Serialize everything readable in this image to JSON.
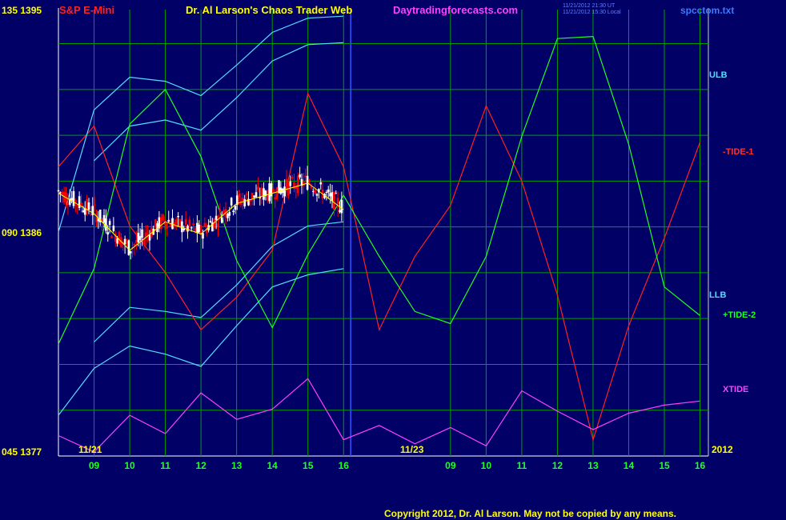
{
  "header": {
    "instrument": "S&P E-Mini",
    "title": "Dr. Al Larson's Chaos Trader Web",
    "site": "Daytradingforecasts.com",
    "timestamp_ut": "11/21/2012 21:30 UT",
    "timestamp_local": "11/21/2012 15:30 Local",
    "filename": "spcctom.txt"
  },
  "left_axis": [
    {
      "label": "135  1395",
      "price": 1395
    },
    {
      "label": "090  1386",
      "price": 1386
    },
    {
      "label": "045  1377",
      "price": 1377
    }
  ],
  "right_labels": {
    "ulb": "ULB",
    "tide1": "-TIDE-1",
    "llb": "LLB",
    "tide2": "+TIDE-2",
    "xtide": "XTIDE",
    "year": "2012"
  },
  "date_labels": [
    "11/21",
    "11/23"
  ],
  "footer": {
    "copyright": "Copyright 2012, Dr. Al Larson. May not be copied by any means."
  },
  "colors": {
    "background": "#000066",
    "grid": "#00a000",
    "ulb": "#55ddff",
    "tide1": "#ff2020",
    "tide2": "#20ff20",
    "xtide": "#ff40ff",
    "price_up": "#ffffff",
    "price_down": "#ff0000",
    "yellow": "#ffff00",
    "vline": "#3355ff"
  },
  "chart_data": {
    "type": "line",
    "title": "Dr. Al Larson's Chaos Trader Web",
    "y_price_range": [
      1377,
      1399
    ],
    "x_hour_ticks": [
      "09",
      "10",
      "11",
      "12",
      "13",
      "14",
      "15",
      "16",
      "09",
      "10",
      "11",
      "12",
      "13",
      "14",
      "15",
      "16"
    ],
    "series": [
      {
        "name": "ULB",
        "x": [
          9,
          10,
          11,
          12,
          13,
          14,
          15,
          16
        ],
        "values": [
          1391.5,
          1393.2,
          1393.5,
          1393.0,
          1394.6,
          1396.4,
          1397.2,
          1397.3
        ]
      },
      {
        "name": "LLB",
        "x": [
          9,
          10,
          11,
          12,
          13,
          14,
          15,
          16
        ],
        "values": [
          1382.6,
          1384.3,
          1384.1,
          1383.8,
          1385.4,
          1387.3,
          1388.3,
          1388.5
        ]
      },
      {
        "name": "-TIDE-1",
        "x": [
          8,
          9,
          10,
          11,
          12,
          13,
          14,
          15,
          16,
          17,
          18,
          19,
          20,
          21,
          22,
          23,
          24,
          25,
          26
        ],
        "values": [
          1391.2,
          1393.2,
          1388.3,
          1386.0,
          1383.2,
          1384.8,
          1387.1,
          1394.8,
          1391.2,
          1383.2,
          1386.8,
          1389.3,
          1394.2,
          1390.5,
          1384.9,
          1377.8,
          1383.4,
          1387.7,
          1392.4
        ]
      },
      {
        "name": "+TIDE-2",
        "x": [
          8,
          9,
          10,
          11,
          12,
          13,
          14,
          15,
          16,
          17,
          18,
          19,
          20,
          21,
          22,
          23,
          24,
          25,
          26
        ],
        "values": [
          1382.5,
          1386.2,
          1393.3,
          1395.0,
          1391.7,
          1386.6,
          1383.3,
          1386.9,
          1389.8,
          1386.8,
          1384.1,
          1383.5,
          1386.8,
          1392.7,
          1397.5,
          1397.6,
          1392.3,
          1385.3,
          1383.9
        ]
      },
      {
        "name": "XTIDE",
        "x": [
          8,
          9,
          10,
          11,
          12,
          13,
          14,
          15,
          16,
          17,
          18,
          19,
          20,
          21,
          22,
          23,
          24,
          25,
          26
        ],
        "values": [
          1378.0,
          1377.2,
          1379.0,
          1378.1,
          1380.1,
          1378.8,
          1379.3,
          1380.8,
          1377.8,
          1378.5,
          1377.6,
          1378.4,
          1377.5,
          1380.2,
          1379.2,
          1378.3,
          1379.1,
          1379.5,
          1379.7
        ]
      }
    ],
    "price_bars_range": {
      "x": [
        8,
        16
      ],
      "low": 1386.4,
      "high": 1391.5
    }
  }
}
